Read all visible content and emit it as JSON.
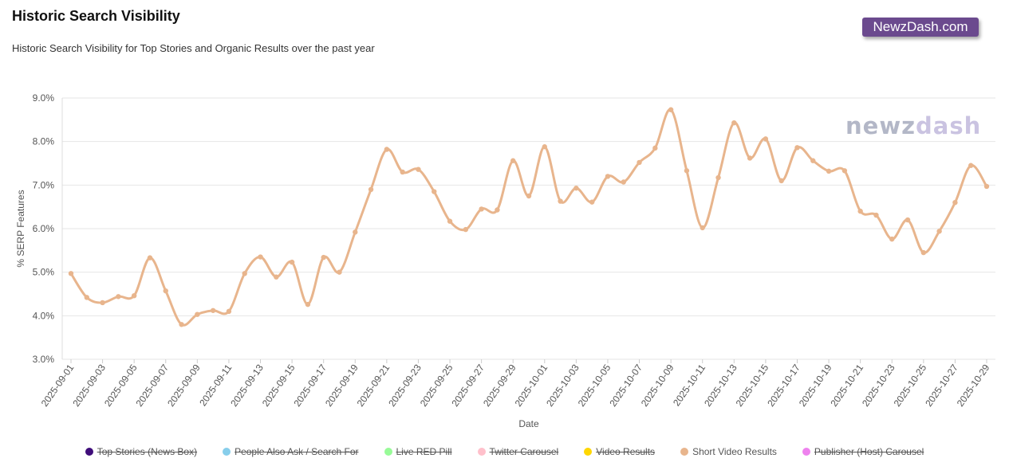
{
  "header": {
    "title": "Historic Search Visibility",
    "subtitle": "Historic Search Visibility for Top Stories and Organic Results over the past year",
    "brand": "NewzDash.com",
    "watermark_a": "newz",
    "watermark_b": "dash"
  },
  "colors": {
    "line": "#e8b58d",
    "grid": "#e6e6e6",
    "axis_text": "#555555"
  },
  "chart_data": {
    "type": "line",
    "title": "Historic Search Visibility",
    "xlabel": "Date",
    "ylabel": "% SERP Features",
    "ylim": [
      3.0,
      9.0
    ],
    "yticks": [
      "3.0%",
      "4.0%",
      "5.0%",
      "6.0%",
      "7.0%",
      "8.0%",
      "9.0%"
    ],
    "x": [
      "2025-09-01",
      "2025-09-02",
      "2025-09-03",
      "2025-09-04",
      "2025-09-05",
      "2025-09-06",
      "2025-09-07",
      "2025-09-08",
      "2025-09-09",
      "2025-09-10",
      "2025-09-11",
      "2025-09-12",
      "2025-09-13",
      "2025-09-14",
      "2025-09-15",
      "2025-09-16",
      "2025-09-17",
      "2025-09-18",
      "2025-09-19",
      "2025-09-20",
      "2025-09-21",
      "2025-09-22",
      "2025-09-23",
      "2025-09-24",
      "2025-09-25",
      "2025-09-26",
      "2025-09-27",
      "2025-09-28",
      "2025-09-29",
      "2025-09-30",
      "2025-10-01",
      "2025-10-02",
      "2025-10-03",
      "2025-10-04",
      "2025-10-05",
      "2025-10-06",
      "2025-10-07",
      "2025-10-08",
      "2025-10-09",
      "2025-10-10",
      "2025-10-11",
      "2025-10-12",
      "2025-10-13",
      "2025-10-14",
      "2025-10-15",
      "2025-10-16",
      "2025-10-17",
      "2025-10-18",
      "2025-10-19",
      "2025-10-20",
      "2025-10-21",
      "2025-10-22",
      "2025-10-23",
      "2025-10-24",
      "2025-10-25",
      "2025-10-26",
      "2025-10-27",
      "2025-10-28",
      "2025-10-29"
    ],
    "xtick_labels": [
      "2025-09-01",
      "2025-09-03",
      "2025-09-05",
      "2025-09-07",
      "2025-09-09",
      "2025-09-11",
      "2025-09-13",
      "2025-09-15",
      "2025-09-17",
      "2025-09-19",
      "2025-09-21",
      "2025-09-23",
      "2025-09-25",
      "2025-09-27",
      "2025-09-29",
      "2025-10-01",
      "2025-10-03",
      "2025-10-05",
      "2025-10-07",
      "2025-10-09",
      "2025-10-11",
      "2025-10-13",
      "2025-10-15",
      "2025-10-17",
      "2025-10-19",
      "2025-10-21",
      "2025-10-23",
      "2025-10-25",
      "2025-10-27",
      "2025-10-29"
    ],
    "series": [
      {
        "name": "Short Video Results",
        "values": [
          4.97,
          4.42,
          4.3,
          4.44,
          4.46,
          5.33,
          4.57,
          3.8,
          4.03,
          4.12,
          4.1,
          4.97,
          5.35,
          4.89,
          5.23,
          4.26,
          5.34,
          5.0,
          5.92,
          6.9,
          7.82,
          7.3,
          7.36,
          6.85,
          6.17,
          5.98,
          6.45,
          6.43,
          7.56,
          6.75,
          7.88,
          6.63,
          6.93,
          6.61,
          7.2,
          7.07,
          7.52,
          7.85,
          8.73,
          7.33,
          6.02,
          7.17,
          8.43,
          7.62,
          8.06,
          7.1,
          7.86,
          7.56,
          7.32,
          7.33,
          6.4,
          6.31,
          5.76,
          6.2,
          5.45,
          5.94,
          6.6,
          7.45,
          6.97
        ]
      }
    ],
    "legend": [
      {
        "name": "Top Stories (News Box)",
        "color": "#3f0d7a",
        "hidden": true
      },
      {
        "name": "People Also Ask / Search For",
        "color": "#87ceeb",
        "hidden": true
      },
      {
        "name": "Live RED Pill",
        "color": "#98fb98",
        "hidden": true
      },
      {
        "name": "Twitter Carousel",
        "color": "#ffc0cb",
        "hidden": true
      },
      {
        "name": "Video Results",
        "color": "#ffd700",
        "hidden": true
      },
      {
        "name": "Short Video Results",
        "color": "#e8b58d",
        "hidden": false
      },
      {
        "name": "Publisher (Host) Carousel",
        "color": "#ee82ee",
        "hidden": true
      }
    ]
  }
}
